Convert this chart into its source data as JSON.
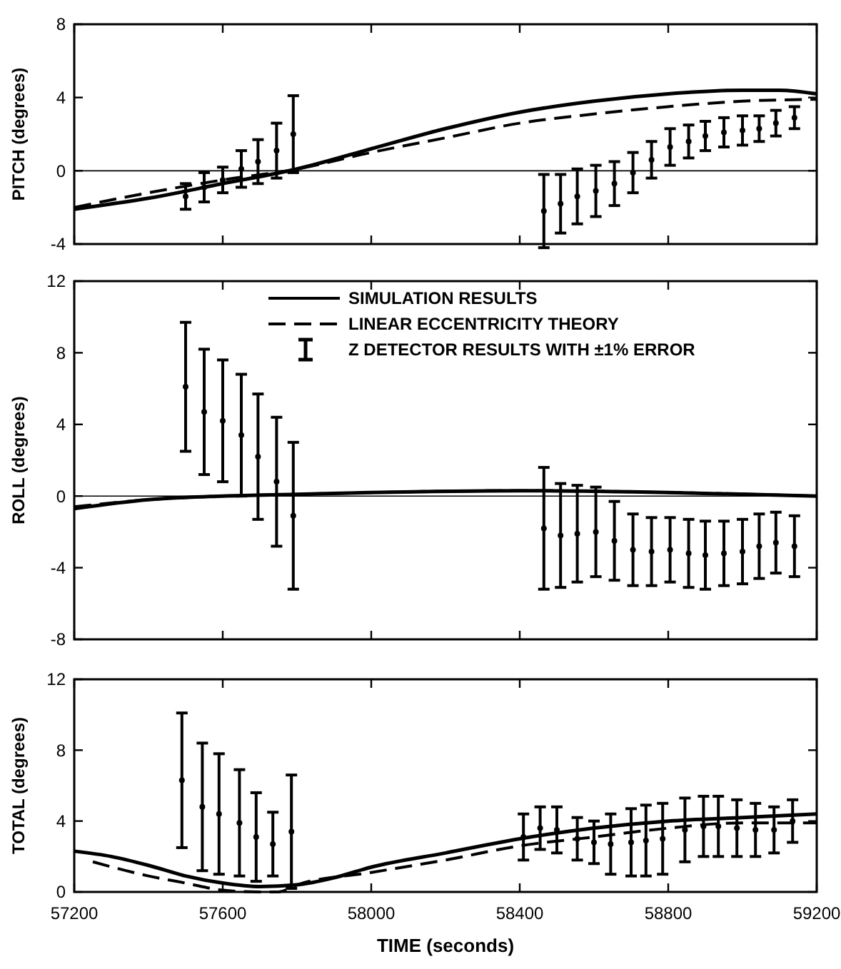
{
  "chart_data": [
    {
      "type": "line",
      "ylabel": "PITCH (degrees)",
      "xlim": [
        57200,
        59200
      ],
      "xticks": [
        {
          "value": 57200,
          "label": null
        },
        {
          "value": 57600,
          "label": null
        },
        {
          "value": 58000,
          "label": null
        },
        {
          "value": 58400,
          "label": null
        },
        {
          "value": 58800,
          "label": null
        },
        {
          "value": 59200,
          "label": null
        }
      ],
      "ylim": [
        -4,
        8
      ],
      "yticks": [
        -4,
        0,
        4,
        8
      ],
      "tick_labels": "y",
      "grid": false,
      "legend": false,
      "ref_lines": [
        {
          "axis": "y",
          "value": 0,
          "color": "#000000"
        }
      ],
      "series": [
        {
          "color": "#000000",
          "line_style": "solid",
          "x": [
            57200,
            57400,
            57600,
            57800,
            58000,
            58200,
            58400,
            58600,
            58800,
            59000,
            59100,
            59200
          ],
          "values": [
            -2.1,
            -1.5,
            -0.7,
            0.1,
            1.2,
            2.3,
            3.2,
            3.8,
            4.2,
            4.4,
            4.4,
            4.2
          ]
        },
        {
          "color": "#000000",
          "line_style": "dashed",
          "x": [
            57200,
            57400,
            57600,
            57800,
            58000,
            58200,
            58400,
            58600,
            58800,
            59000,
            59200
          ],
          "values": [
            -2.0,
            -1.2,
            -0.5,
            0.1,
            1.0,
            1.8,
            2.6,
            3.1,
            3.5,
            3.8,
            3.9
          ]
        },
        {
          "type": "scatter",
          "color": "#000000",
          "marker": "circle",
          "x": [
            57500,
            57550,
            57600,
            57650,
            57695,
            57745,
            57790,
            58465,
            58510,
            58555,
            58605,
            58655,
            58705,
            58755,
            58805,
            58855,
            58900,
            58950,
            59000,
            59045,
            59090,
            59140
          ],
          "values": [
            -1.4,
            -0.9,
            -0.5,
            0.1,
            0.5,
            1.1,
            2.0,
            -2.2,
            -1.8,
            -1.4,
            -1.1,
            -0.7,
            -0.1,
            0.6,
            1.3,
            1.6,
            1.9,
            2.1,
            2.2,
            2.3,
            2.6,
            2.9
          ],
          "errors": [
            0.7,
            0.8,
            0.7,
            1.0,
            1.2,
            1.5,
            2.1,
            2.0,
            1.6,
            1.5,
            1.4,
            1.2,
            1.1,
            1.0,
            1.0,
            0.9,
            0.8,
            0.8,
            0.8,
            0.7,
            0.7,
            0.6
          ]
        }
      ]
    },
    {
      "type": "line",
      "ylabel": "ROLL (degrees)",
      "xlim": [
        57200,
        59200
      ],
      "xticks": [
        {
          "value": 57200,
          "label": null
        },
        {
          "value": 57600,
          "label": null
        },
        {
          "value": 58000,
          "label": null
        },
        {
          "value": 58400,
          "label": null
        },
        {
          "value": 58800,
          "label": null
        },
        {
          "value": 59200,
          "label": null
        }
      ],
      "ylim": [
        -8,
        12
      ],
      "yticks": [
        -8,
        -4,
        0,
        4,
        8,
        12
      ],
      "tick_labels": "y",
      "grid": false,
      "legend": "top right",
      "ref_lines": [
        {
          "axis": "y",
          "value": 0,
          "color": "#000000"
        }
      ],
      "series": [
        {
          "name": "SIMULATION RESULTS",
          "color": "#000000",
          "line_style": "solid",
          "x": [
            57200,
            57400,
            57600,
            57800,
            58000,
            58400,
            58800,
            59200
          ],
          "values": [
            -0.7,
            -0.2,
            0,
            0.1,
            0.2,
            0.3,
            0.2,
            0
          ]
        },
        {
          "name": "LINEAR ECCENTRICITY THEORY",
          "color": "#000000",
          "line_style": "dashed",
          "x": [
            57200,
            57400,
            57600,
            57800,
            58000,
            58400,
            58800,
            59200
          ],
          "values": [
            -0.6,
            -0.2,
            0,
            0.1,
            0.2,
            0.3,
            0.2,
            0
          ]
        },
        {
          "type": "scatter",
          "name": "Z DETECTOR RESULTS WITH ±1% ERROR",
          "color": "#000000",
          "marker": "circle",
          "x": [
            57500,
            57550,
            57600,
            57650,
            57695,
            57745,
            57790,
            58465,
            58510,
            58555,
            58605,
            58655,
            58705,
            58755,
            58805,
            58855,
            58900,
            58950,
            59000,
            59045,
            59090,
            59140
          ],
          "values": [
            6.1,
            4.7,
            4.2,
            3.4,
            2.2,
            0.8,
            -1.1,
            -1.8,
            -2.2,
            -2.1,
            -2.0,
            -2.5,
            -3.0,
            -3.1,
            -3.0,
            -3.2,
            -3.3,
            -3.2,
            -3.1,
            -2.8,
            -2.6,
            -2.8
          ],
          "errors": [
            3.6,
            3.5,
            3.4,
            3.4,
            3.5,
            3.6,
            4.1,
            3.4,
            2.9,
            2.7,
            2.5,
            2.2,
            2.0,
            1.9,
            1.8,
            1.9,
            1.9,
            1.8,
            1.8,
            1.8,
            1.7,
            1.7
          ]
        }
      ]
    },
    {
      "type": "line",
      "xlabel": "TIME (seconds)",
      "ylabel": "TOTAL (degrees)",
      "xlim": [
        57200,
        59200
      ],
      "xticks": [
        57200,
        57600,
        58000,
        58400,
        58800,
        59200
      ],
      "ylim": [
        0,
        12
      ],
      "yticks": [
        0,
        4,
        8,
        12
      ],
      "grid": false,
      "legend": false,
      "series": [
        {
          "color": "#000000",
          "line_style": "solid",
          "x": [
            57200,
            57300,
            57400,
            57500,
            57600,
            57700,
            57800,
            57900,
            58000,
            58200,
            58400,
            58600,
            58800,
            59000,
            59200
          ],
          "values": [
            2.3,
            2.0,
            1.5,
            0.9,
            0.5,
            0.3,
            0.4,
            0.8,
            1.4,
            2.2,
            3.0,
            3.6,
            4.0,
            4.2,
            4.4
          ]
        },
        {
          "color": "#000000",
          "line_style": "dashed",
          "x": [
            57250,
            57400,
            57500,
            57600,
            57700,
            57750,
            57800,
            58000,
            58200,
            58400,
            58600,
            58800,
            59000,
            59200
          ],
          "values": [
            1.7,
            0.9,
            0.5,
            0.1,
            0.0,
            0.0,
            0.4,
            1.1,
            1.8,
            2.6,
            3.1,
            3.6,
            3.9,
            3.9
          ]
        },
        {
          "type": "scatter",
          "color": "#000000",
          "marker": "circle",
          "x": [
            57490,
            57545,
            57590,
            57645,
            57690,
            57735,
            57785,
            58410,
            58455,
            58500,
            58555,
            58600,
            58645,
            58700,
            58740,
            58785,
            58845,
            58895,
            58935,
            58985,
            59035,
            59085,
            59135
          ],
          "values": [
            6.3,
            4.8,
            4.4,
            3.9,
            3.1,
            2.7,
            3.4,
            3.1,
            3.6,
            3.5,
            3.0,
            2.8,
            2.7,
            2.8,
            2.9,
            3.0,
            3.5,
            3.7,
            3.7,
            3.6,
            3.5,
            3.5,
            4.0
          ],
          "errors": [
            3.8,
            3.6,
            3.4,
            3.0,
            2.5,
            1.8,
            3.2,
            1.3,
            1.2,
            1.3,
            1.2,
            1.2,
            1.7,
            1.9,
            2.0,
            2.0,
            1.8,
            1.7,
            1.7,
            1.6,
            1.5,
            1.3,
            1.2
          ]
        }
      ]
    }
  ]
}
